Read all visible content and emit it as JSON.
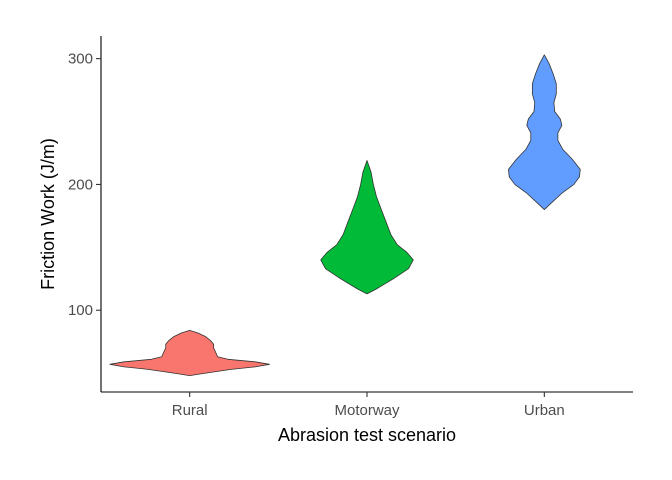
{
  "chart_data": {
    "type": "violin",
    "xlabel": "Abrasion test scenario",
    "ylabel": "Friction Work (J/m)",
    "categories": [
      "Rural",
      "Motorway",
      "Urban"
    ],
    "ylim": [
      35,
      318
    ],
    "yticks": [
      100,
      200,
      300
    ],
    "grid": false,
    "legend": "none",
    "series": [
      {
        "name": "Rural",
        "color": "#F8766D",
        "min": 48,
        "max": 84,
        "profile": [
          [
            48,
            0.0
          ],
          [
            50,
            0.2
          ],
          [
            53,
            0.52
          ],
          [
            55,
            0.82
          ],
          [
            57,
            1.0
          ],
          [
            59,
            0.82
          ],
          [
            61,
            0.48
          ],
          [
            63,
            0.35
          ],
          [
            66,
            0.33
          ],
          [
            70,
            0.3
          ],
          [
            73,
            0.3
          ],
          [
            76,
            0.26
          ],
          [
            79,
            0.2
          ],
          [
            82,
            0.1
          ],
          [
            84,
            0.0
          ]
        ]
      },
      {
        "name": "Motorway",
        "color": "#00BA38",
        "min": 113,
        "max": 219,
        "profile": [
          [
            113,
            0.0
          ],
          [
            117,
            0.12
          ],
          [
            125,
            0.33
          ],
          [
            133,
            0.52
          ],
          [
            140,
            0.58
          ],
          [
            146,
            0.5
          ],
          [
            152,
            0.38
          ],
          [
            160,
            0.3
          ],
          [
            170,
            0.24
          ],
          [
            180,
            0.18
          ],
          [
            190,
            0.12
          ],
          [
            200,
            0.08
          ],
          [
            210,
            0.05
          ],
          [
            219,
            0.0
          ]
        ]
      },
      {
        "name": "Urban",
        "color": "#619CFF",
        "min": 180,
        "max": 303,
        "profile": [
          [
            180,
            0.0
          ],
          [
            186,
            0.1
          ],
          [
            193,
            0.22
          ],
          [
            200,
            0.37
          ],
          [
            206,
            0.44
          ],
          [
            212,
            0.45
          ],
          [
            220,
            0.35
          ],
          [
            228,
            0.23
          ],
          [
            235,
            0.17
          ],
          [
            241,
            0.17
          ],
          [
            247,
            0.22
          ],
          [
            252,
            0.2
          ],
          [
            258,
            0.13
          ],
          [
            265,
            0.12
          ],
          [
            272,
            0.15
          ],
          [
            280,
            0.15
          ],
          [
            288,
            0.11
          ],
          [
            296,
            0.06
          ],
          [
            303,
            0.0
          ]
        ]
      }
    ]
  }
}
